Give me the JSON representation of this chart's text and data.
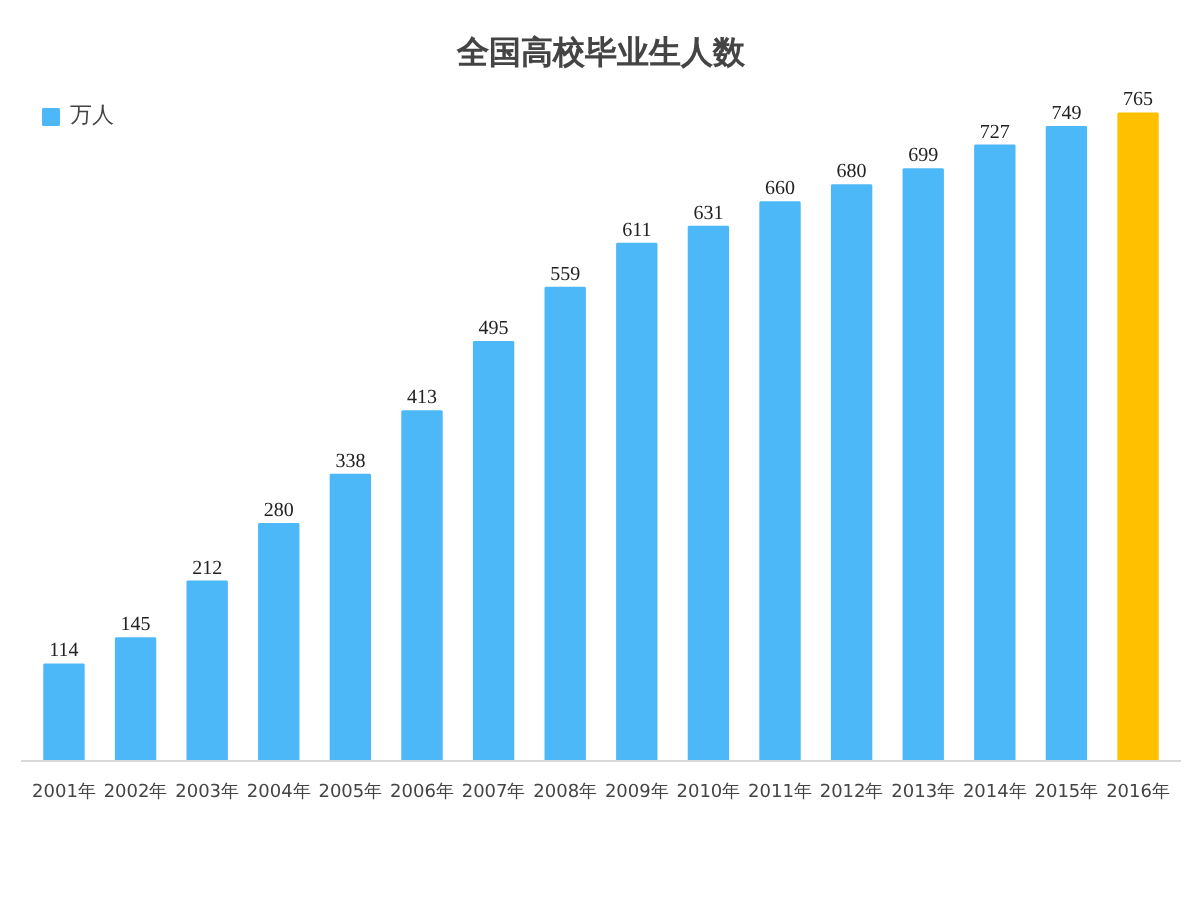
{
  "chart_data": {
    "type": "bar",
    "title": "全国高校毕业生人数",
    "categories": [
      "2001年",
      "2002年",
      "2003年",
      "2004年",
      "2005年",
      "2006年",
      "2007年",
      "2008年",
      "2009年",
      "2010年",
      "2011年",
      "2012年",
      "2013年",
      "2014年",
      "2015年",
      "2016年"
    ],
    "series": [
      {
        "name": "万人",
        "color": "#4db8f8",
        "values": [
          114,
          145,
          212,
          280,
          338,
          413,
          495,
          559,
          611,
          631,
          660,
          680,
          699,
          727,
          749,
          765
        ],
        "colors": [
          "#4db8f8",
          "#4db8f8",
          "#4db8f8",
          "#4db8f8",
          "#4db8f8",
          "#4db8f8",
          "#4db8f8",
          "#4db8f8",
          "#4db8f8",
          "#4db8f8",
          "#4db8f8",
          "#4db8f8",
          "#4db8f8",
          "#4db8f8",
          "#4db8f8",
          "#ffc000"
        ]
      }
    ],
    "tick_labels": "x",
    "data_labels": true,
    "legend": "top left",
    "grid": false
  }
}
